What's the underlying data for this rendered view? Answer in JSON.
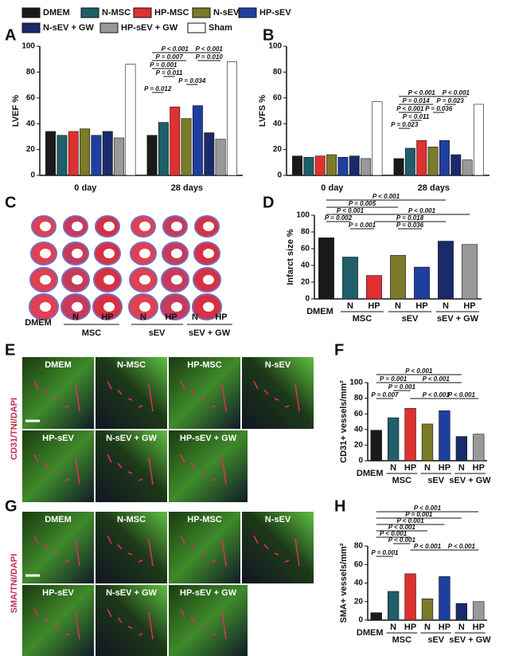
{
  "panel_letters": [
    "A",
    "B",
    "C",
    "D",
    "E",
    "F",
    "G",
    "H"
  ],
  "panel_c": {
    "labels": [
      "DMEM",
      "N",
      "HP",
      "N",
      "HP",
      "N",
      "HP"
    ],
    "groups": [
      "MSC",
      "sEV",
      "sEV + GW"
    ]
  },
  "panel_e": {
    "stain": "CD31/TNI/DAPI",
    "tiles": [
      "DMEM",
      "N-MSC",
      "HP-MSC",
      "N-sEV",
      "HP-sEV",
      "N-sEV + GW",
      "HP-sEV + GW"
    ]
  },
  "panel_g": {
    "stain": "SMA/TNI/DAPI",
    "tiles": [
      "DMEM",
      "N-MSC",
      "HP-MSC",
      "N-sEV",
      "HP-sEV",
      "N-sEV + GW",
      "HP-sEV + GW"
    ]
  },
  "chart_data": [
    {
      "type": "bar",
      "ylabel": "LVEF %",
      "categories": [
        "0 day",
        "28 days"
      ],
      "ylim": [
        0,
        100
      ],
      "yticks": [
        0,
        20,
        40,
        60,
        80,
        100
      ],
      "series": [
        {
          "name": "DMEM",
          "color": "#1a1a1a",
          "values": [
            34,
            31
          ]
        },
        {
          "name": "N-MSC",
          "color": "#1f5f6b",
          "values": [
            31,
            41
          ]
        },
        {
          "name": "HP-MSC",
          "color": "#e03030",
          "values": [
            34,
            53
          ]
        },
        {
          "name": "N-sEV",
          "color": "#7b7b2a",
          "values": [
            36,
            44
          ]
        },
        {
          "name": "HP-sEV",
          "color": "#1f3fa0",
          "values": [
            31,
            54
          ]
        },
        {
          "name": "N-sEV + GW",
          "color": "#1a2a6a",
          "values": [
            34,
            33
          ]
        },
        {
          "name": "HP-sEV + GW",
          "color": "#999999",
          "values": [
            29,
            28
          ]
        },
        {
          "name": "Sham",
          "color": "#ffffff",
          "values": [
            86,
            88
          ]
        }
      ],
      "annotations": [
        "P < 0.001",
        "P < 0.001",
        "P = 0.007",
        "P = 0.010",
        "P = 0.001",
        "P = 0.011",
        "P = 0.034",
        "P = 0.012"
      ]
    },
    {
      "type": "bar",
      "ylabel": "LVFS %",
      "categories": [
        "0 day",
        "28 days"
      ],
      "ylim": [
        0,
        100
      ],
      "yticks": [
        0,
        20,
        40,
        60,
        80,
        100
      ],
      "series": [
        {
          "color": "#1a1a1a",
          "values": [
            15,
            13
          ]
        },
        {
          "color": "#1f5f6b",
          "values": [
            14,
            21
          ]
        },
        {
          "color": "#e03030",
          "values": [
            15,
            27
          ]
        },
        {
          "color": "#7b7b2a",
          "values": [
            16,
            22
          ]
        },
        {
          "color": "#1f3fa0",
          "values": [
            14,
            27
          ]
        },
        {
          "color": "#1a2a6a",
          "values": [
            15,
            16
          ]
        },
        {
          "color": "#999999",
          "values": [
            13,
            12
          ]
        },
        {
          "color": "#ffffff",
          "values": [
            57,
            55
          ]
        }
      ],
      "annotations": [
        "P < 0.001",
        "P < 0.001",
        "P = 0.014",
        "P = 0.023",
        "P < 0.001",
        "P = 0.036",
        "P = 0.011",
        "P = 0.023"
      ]
    },
    {
      "type": "bar",
      "ylabel": "Infarct size %",
      "categories": [
        "DMEM",
        "N",
        "HP",
        "N",
        "HP",
        "N",
        "HP"
      ],
      "groups": [
        "MSC",
        "sEV",
        "sEV + GW"
      ],
      "values": [
        73,
        50,
        28,
        52,
        38,
        69,
        65
      ],
      "colors": [
        "#1a1a1a",
        "#1f5f6b",
        "#e03030",
        "#7b7b2a",
        "#1f3fa0",
        "#1a2a6a",
        "#999999"
      ],
      "ylim": [
        0,
        100
      ],
      "yticks": [
        0,
        20,
        40,
        60,
        80,
        100
      ],
      "annotations": [
        "P < 0.001",
        "P = 0.005",
        "P < 0.001",
        "P < 0.001",
        "P = 0.002",
        "P = 0.018",
        "P = 0.001",
        "P = 0.036"
      ]
    },
    {
      "type": "bar",
      "ylabel": "CD31+ vessels/mm²",
      "categories": [
        "DMEM",
        "N",
        "HP",
        "N",
        "HP",
        "N",
        "HP"
      ],
      "groups": [
        "MSC",
        "sEV",
        "sEV + GW"
      ],
      "values": [
        39,
        55,
        67,
        47,
        64,
        31,
        34
      ],
      "colors": [
        "#1a1a1a",
        "#1f5f6b",
        "#e03030",
        "#7b7b2a",
        "#1f3fa0",
        "#1a2a6a",
        "#999999"
      ],
      "ylim": [
        0,
        100
      ],
      "yticks": [
        0,
        20,
        40,
        60,
        80,
        100
      ],
      "annotations": [
        "P < 0.001",
        "P = 0.001",
        "P < 0.001",
        "P = 0.001",
        "P = 0.007",
        "P < 0.001",
        "P < 0.001"
      ]
    },
    {
      "type": "bar",
      "ylabel": "SMA+ vessels/mm²",
      "categories": [
        "DMEM",
        "N",
        "HP",
        "N",
        "HP",
        "N",
        "HP"
      ],
      "groups": [
        "MSC",
        "sEV",
        "sEV + GW"
      ],
      "values": [
        8,
        31,
        50,
        23,
        47,
        18,
        20
      ],
      "colors": [
        "#1a1a1a",
        "#1f5f6b",
        "#e03030",
        "#7b7b2a",
        "#1f3fa0",
        "#1a2a6a",
        "#999999"
      ],
      "ylim": [
        0,
        80
      ],
      "yticks": [
        0,
        20,
        40,
        60,
        80
      ],
      "annotations": [
        "P < 0.001",
        "P = 0.001",
        "P < 0.001",
        "P < 0.001",
        "P < 0.001",
        "P < 0.001",
        "P < 0.001",
        "P < 0.001",
        "P = 0.001"
      ]
    }
  ]
}
